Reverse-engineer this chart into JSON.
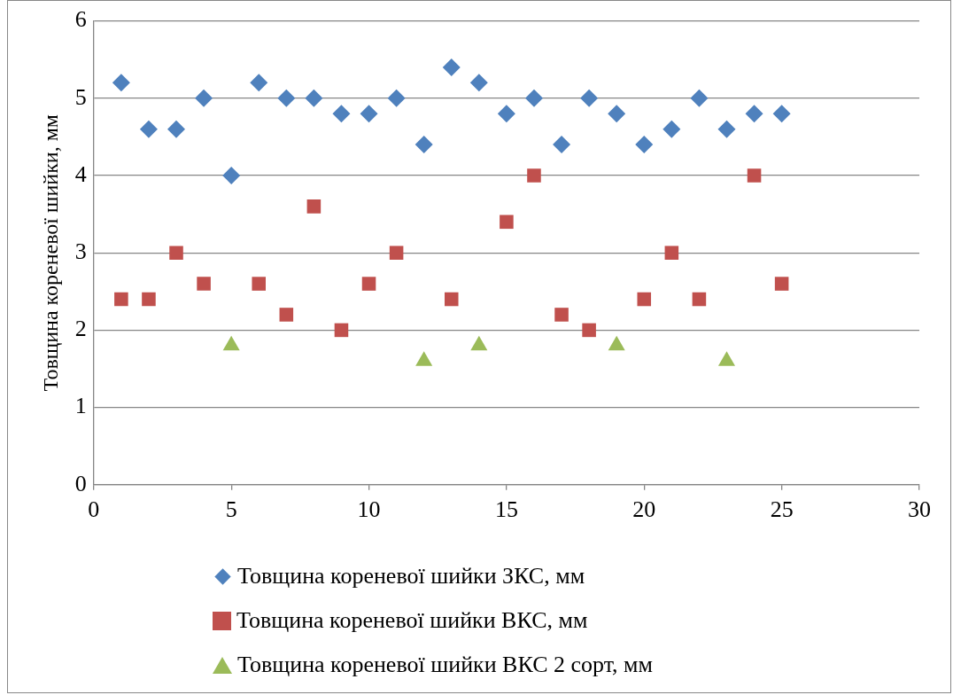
{
  "chart_data": {
    "type": "scatter",
    "ylabel": "Товщина кореневої шийки, мм",
    "xlim": [
      0,
      30
    ],
    "xticks": [
      0,
      5,
      10,
      15,
      20,
      25,
      30
    ],
    "ylim": [
      0,
      6
    ],
    "yticks": [
      0,
      1,
      2,
      3,
      4,
      5,
      6
    ],
    "grid": "y",
    "legend": "bottom",
    "series": [
      {
        "name": "Товщина кореневої шийки ЗКС, мм",
        "color": "#4f81bd",
        "marker": "diamond",
        "x": [
          1,
          2,
          3,
          4,
          5,
          6,
          7,
          8,
          9,
          10,
          11,
          12,
          13,
          14,
          15,
          16,
          17,
          18,
          19,
          20,
          21,
          22,
          23,
          24,
          25
        ],
        "values": [
          5.2,
          4.6,
          4.6,
          5.0,
          4.0,
          5.2,
          5.0,
          5.0,
          4.8,
          4.8,
          5.0,
          4.4,
          5.4,
          5.2,
          4.8,
          5.0,
          4.4,
          5.0,
          4.8,
          4.4,
          4.6,
          5.0,
          4.6,
          4.8,
          4.8
        ]
      },
      {
        "name": "Товщина кореневої шийки ВКС, мм",
        "color": "#c0504d",
        "marker": "square",
        "x": [
          1,
          2,
          3,
          4,
          6,
          7,
          8,
          9,
          10,
          11,
          13,
          15,
          16,
          17,
          18,
          20,
          21,
          22,
          24,
          25
        ],
        "values": [
          2.4,
          2.4,
          3.0,
          2.6,
          2.6,
          2.2,
          3.6,
          2.0,
          2.6,
          3.0,
          2.4,
          3.4,
          4.0,
          2.2,
          2.0,
          2.4,
          3.0,
          2.4,
          4.0,
          2.6
        ]
      },
      {
        "name": "Товщина кореневої шийки ВКС 2 сорт, мм",
        "color": "#9bbb59",
        "marker": "triangle",
        "x": [
          5,
          12,
          14,
          19,
          23
        ],
        "values": [
          1.8,
          1.6,
          1.8,
          1.8,
          1.6
        ]
      }
    ]
  }
}
